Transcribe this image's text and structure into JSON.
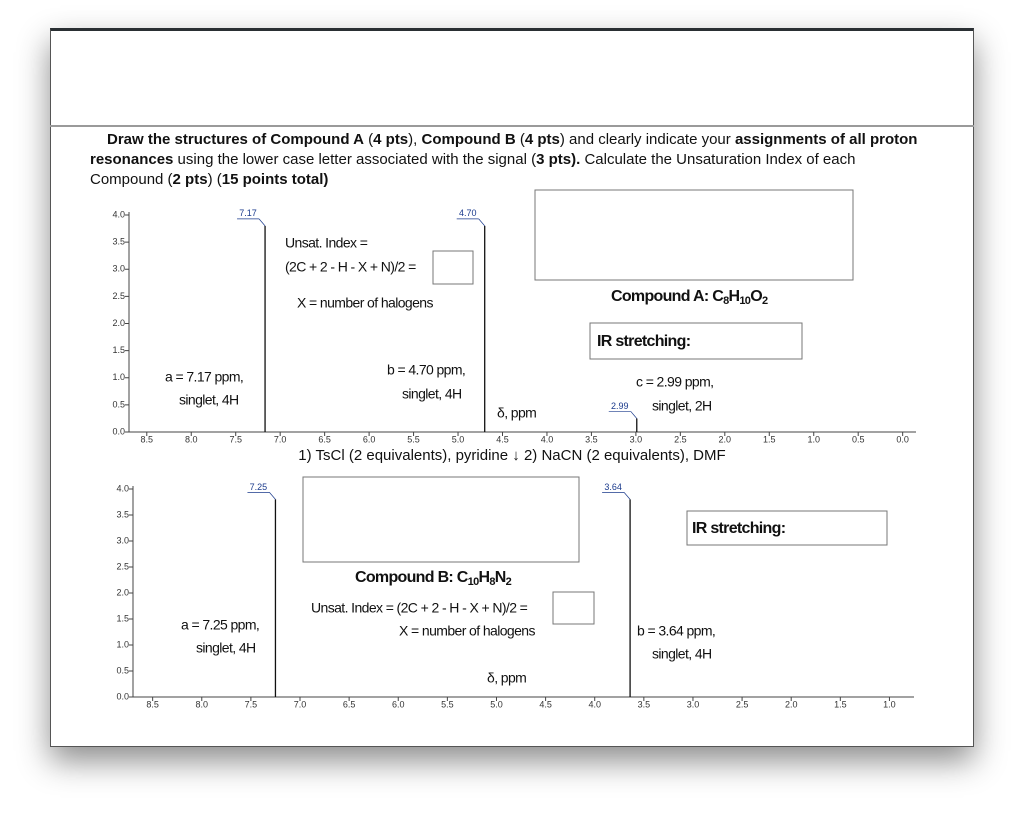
{
  "instructions": {
    "runs": [
      {
        "text": "Draw the structures of Compound A",
        "bold": true
      },
      {
        "text": " (",
        "bold": false
      },
      {
        "text": "4 pts",
        "bold": true
      },
      {
        "text": "), ",
        "bold": false
      },
      {
        "text": "Compound B",
        "bold": true
      },
      {
        "text": " (",
        "bold": false
      },
      {
        "text": "4 pts",
        "bold": true
      },
      {
        "text": ") and clearly indicate your ",
        "bold": false
      },
      {
        "text": "assignments of all proton resonances",
        "bold": true
      },
      {
        "text": " using the lower case letter associated with the signal (",
        "bold": false
      },
      {
        "text": "3 pts).",
        "bold": true
      },
      {
        "text": " Calculate the Unsaturation Index of each Compound (",
        "bold": false
      },
      {
        "text": "2 pts",
        "bold": true
      },
      {
        "text": ") (",
        "bold": false
      },
      {
        "text": "15 points total)",
        "bold": true
      }
    ]
  },
  "spectrum_a": {
    "xlim": [
      8.7,
      -0.15
    ],
    "xticks": [
      8.5,
      {
        "value": 8,
        "label": "8.0"
      },
      7.5,
      {
        "value": 7,
        "label": "7.0"
      },
      6.5,
      {
        "value": 6,
        "label": "6.0"
      },
      5.5,
      {
        "value": 5,
        "label": "5.0"
      },
      4.5,
      {
        "value": 4,
        "label": "4.0"
      },
      3.5,
      {
        "value": 3,
        "label": "3.0"
      },
      2.5,
      {
        "value": 2,
        "label": "2.0"
      },
      1.5,
      {
        "value": 1,
        "label": "1.0"
      },
      0.5,
      {
        "value": 0,
        "label": "0.0"
      }
    ],
    "ylim": [
      0,
      4
    ],
    "yticks": [
      {
        "value": 0,
        "label": "0.0"
      },
      0.5,
      {
        "value": 1,
        "label": "1.0"
      },
      1.5,
      {
        "value": 2,
        "label": "2.0"
      },
      2.5,
      {
        "value": 3,
        "label": "3.0"
      },
      3.5,
      {
        "value": 4,
        "label": "4.0"
      }
    ],
    "peaks": [
      {
        "shift": 7.17,
        "height": 3.8
      },
      {
        "shift": {
          "value": 4.7,
          "label": "4.70"
        },
        "height": 3.8
      },
      {
        "shift": 2.99,
        "height": 0.25
      }
    ],
    "axis_label": "δ, ppm",
    "assignments": [
      [
        "a = 7.17 ppm,",
        "singlet, 4H"
      ],
      [
        "b = 4.70 ppm,",
        "singlet, 4H"
      ],
      [
        "c = 2.99 ppm,",
        "singlet, 2H"
      ]
    ],
    "unsat_lines": [
      "Unsat. Index =",
      "(2C + 2 - H - X + N)/2 =",
      "X = number of halogens"
    ],
    "compound": [
      {
        "text": "Compound A: C",
        "sub": false
      },
      {
        "text": "8",
        "sub": true
      },
      {
        "text": "H",
        "sub": false
      },
      {
        "text": "10",
        "sub": true
      },
      {
        "text": "O",
        "sub": false
      },
      {
        "text": "2",
        "sub": true
      }
    ],
    "ir": "IR stretching:"
  },
  "reaction": "1) TsCl (2 equivalents), pyridine ↓ 2) NaCN (2 equivalents), DMF",
  "spectrum_b": {
    "xlim": [
      8.7,
      0.75
    ],
    "xticks": [
      8.5,
      {
        "value": 8,
        "label": "8.0"
      },
      7.5,
      {
        "value": 7,
        "label": "7.0"
      },
      6.5,
      {
        "value": 6,
        "label": "6.0"
      },
      5.5,
      {
        "value": 5,
        "label": "5.0"
      },
      4.5,
      {
        "value": 4,
        "label": "4.0"
      },
      3.5,
      {
        "value": 3,
        "label": "3.0"
      },
      2.5,
      {
        "value": 2,
        "label": "2.0"
      },
      1.5,
      {
        "value": 1,
        "label": "1.0"
      }
    ],
    "ylim": [
      0,
      4
    ],
    "yticks": [
      {
        "value": 0,
        "label": "0.0"
      },
      0.5,
      {
        "value": 1,
        "label": "1.0"
      },
      1.5,
      {
        "value": 2,
        "label": "2.0"
      },
      2.5,
      {
        "value": 3,
        "label": "3.0"
      },
      3.5,
      {
        "value": 4,
        "label": "4.0"
      }
    ],
    "peaks": [
      {
        "shift": 7.25,
        "height": 3.8
      },
      {
        "shift": 3.64,
        "height": 3.8
      }
    ],
    "axis_label": "δ, ppm",
    "assignments": [
      [
        "a = 7.25 ppm,",
        "singlet, 4H"
      ],
      [
        "b = 3.64 ppm,",
        "singlet, 4H"
      ]
    ],
    "unsat_lines": [
      "Unsat. Index = (2C + 2 - H - X + N)/2 =",
      "X = number of halogens"
    ],
    "compound": [
      {
        "text": "Compound B: C",
        "sub": false
      },
      {
        "text": "10",
        "sub": true
      },
      {
        "text": "H",
        "sub": false
      },
      {
        "text": "8",
        "sub": true
      },
      {
        "text": "N",
        "sub": false
      },
      {
        "text": "2",
        "sub": true
      }
    ],
    "ir": "IR stretching:"
  }
}
